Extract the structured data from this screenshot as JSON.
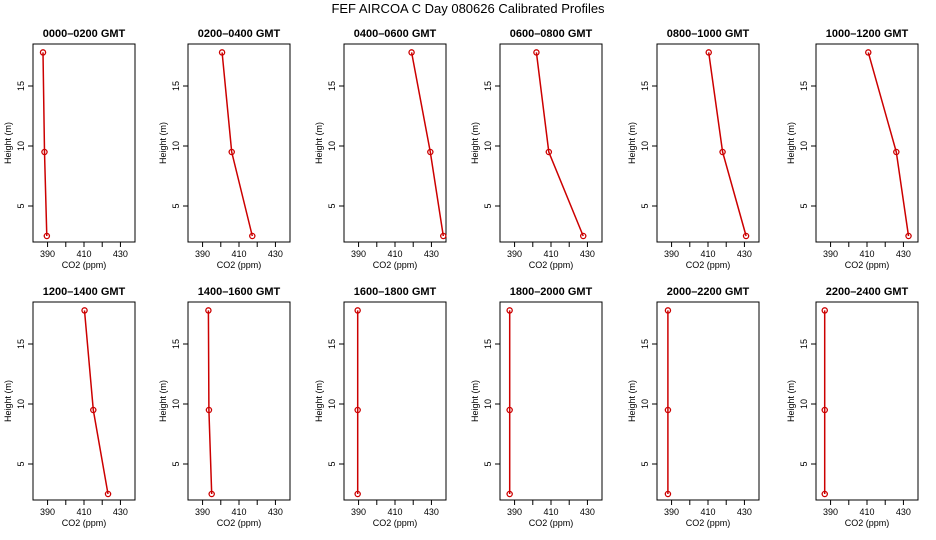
{
  "figure": {
    "title": "FEF  AIRCOA C  Day 080626  Calibrated Profiles",
    "colors": {
      "series": "#cc0000",
      "axis": "#000000",
      "background": "#ffffff"
    }
  },
  "chart_data": [
    {
      "type": "line",
      "title": "0000–0200 GMT",
      "xlabel": "CO2 (ppm)",
      "ylabel": "Height (m)",
      "xlim": [
        382,
        438
      ],
      "ylim": [
        2,
        18.5
      ],
      "xticks": [
        390,
        400,
        410,
        420,
        430
      ],
      "xtick_labels": [
        "390",
        "410",
        "430"
      ],
      "yticks": [
        5,
        10,
        15
      ],
      "ytick_labels": [
        "5",
        "10",
        "15"
      ],
      "series": [
        {
          "name": "profile",
          "x": [
            387.5,
            388.3,
            389.6
          ],
          "y": [
            17.8,
            9.5,
            2.5
          ]
        }
      ]
    },
    {
      "type": "line",
      "title": "0200–0400 GMT",
      "xlabel": "CO2 (ppm)",
      "ylabel": "Height (m)",
      "xlim": [
        382,
        438
      ],
      "ylim": [
        2,
        18.5
      ],
      "xticks": [
        390,
        400,
        410,
        420,
        430
      ],
      "xtick_labels": [
        "390",
        "410",
        "430"
      ],
      "yticks": [
        5,
        10,
        15
      ],
      "ytick_labels": [
        "5",
        "10",
        "15"
      ],
      "series": [
        {
          "name": "profile",
          "x": [
            400.7,
            406.0,
            417.3
          ],
          "y": [
            17.8,
            9.5,
            2.5
          ]
        }
      ]
    },
    {
      "type": "line",
      "title": "0400–0600 GMT",
      "xlabel": "CO2 (ppm)",
      "ylabel": "Height (m)",
      "xlim": [
        382,
        438
      ],
      "ylim": [
        2,
        18.5
      ],
      "xticks": [
        390,
        400,
        410,
        420,
        430
      ],
      "xtick_labels": [
        "390",
        "410",
        "430"
      ],
      "yticks": [
        5,
        10,
        15
      ],
      "ytick_labels": [
        "5",
        "10",
        "15"
      ],
      "series": [
        {
          "name": "profile",
          "x": [
            419.1,
            429.4,
            436.5
          ],
          "y": [
            17.8,
            9.5,
            2.5
          ]
        }
      ]
    },
    {
      "type": "line",
      "title": "0600–0800 GMT",
      "xlabel": "CO2 (ppm)",
      "ylabel": "Height (m)",
      "xlim": [
        382,
        438
      ],
      "ylim": [
        2,
        18.5
      ],
      "xticks": [
        390,
        400,
        410,
        420,
        430
      ],
      "xtick_labels": [
        "390",
        "410",
        "430"
      ],
      "yticks": [
        5,
        10,
        15
      ],
      "ytick_labels": [
        "5",
        "10",
        "15"
      ],
      "series": [
        {
          "name": "profile",
          "x": [
            402.0,
            408.8,
            427.7
          ],
          "y": [
            17.8,
            9.5,
            2.5
          ]
        }
      ]
    },
    {
      "type": "line",
      "title": "0800–1000 GMT",
      "xlabel": "CO2 (ppm)",
      "ylabel": "Height (m)",
      "xlim": [
        382,
        438
      ],
      "ylim": [
        2,
        18.5
      ],
      "xticks": [
        390,
        400,
        410,
        420,
        430
      ],
      "xtick_labels": [
        "390",
        "410",
        "430"
      ],
      "yticks": [
        5,
        10,
        15
      ],
      "ytick_labels": [
        "5",
        "10",
        "15"
      ],
      "series": [
        {
          "name": "profile",
          "x": [
            410.4,
            418.0,
            430.9
          ],
          "y": [
            17.8,
            9.5,
            2.5
          ]
        }
      ]
    },
    {
      "type": "line",
      "title": "1000–1200 GMT",
      "xlabel": "CO2 (ppm)",
      "ylabel": "Height (m)",
      "xlim": [
        382,
        438
      ],
      "ylim": [
        2,
        18.5
      ],
      "xticks": [
        390,
        400,
        410,
        420,
        430
      ],
      "xtick_labels": [
        "390",
        "410",
        "430"
      ],
      "yticks": [
        5,
        10,
        15
      ],
      "ytick_labels": [
        "5",
        "10",
        "15"
      ],
      "series": [
        {
          "name": "profile",
          "x": [
            410.7,
            426.1,
            432.8
          ],
          "y": [
            17.8,
            9.5,
            2.5
          ]
        }
      ]
    },
    {
      "type": "line",
      "title": "1200–1400 GMT",
      "xlabel": "CO2 (ppm)",
      "ylabel": "Height (m)",
      "xlim": [
        382,
        438
      ],
      "ylim": [
        2,
        18.5
      ],
      "xticks": [
        390,
        400,
        410,
        420,
        430
      ],
      "xtick_labels": [
        "390",
        "410",
        "430"
      ],
      "yticks": [
        5,
        10,
        15
      ],
      "ytick_labels": [
        "5",
        "10",
        "15"
      ],
      "series": [
        {
          "name": "profile",
          "x": [
            410.3,
            415.1,
            423.2
          ],
          "y": [
            17.8,
            9.5,
            2.5
          ]
        }
      ]
    },
    {
      "type": "line",
      "title": "1400–1600 GMT",
      "xlabel": "CO2 (ppm)",
      "ylabel": "Height (m)",
      "xlim": [
        382,
        438
      ],
      "ylim": [
        2,
        18.5
      ],
      "xticks": [
        390,
        400,
        410,
        420,
        430
      ],
      "xtick_labels": [
        "390",
        "410",
        "430"
      ],
      "yticks": [
        5,
        10,
        15
      ],
      "ytick_labels": [
        "5",
        "10",
        "15"
      ],
      "series": [
        {
          "name": "profile",
          "x": [
            393.2,
            393.5,
            395.0
          ],
          "y": [
            17.8,
            9.5,
            2.5
          ]
        }
      ]
    },
    {
      "type": "line",
      "title": "1600–1800 GMT",
      "xlabel": "CO2 (ppm)",
      "ylabel": "Height (m)",
      "xlim": [
        382,
        438
      ],
      "ylim": [
        2,
        18.5
      ],
      "xticks": [
        390,
        400,
        410,
        420,
        430
      ],
      "xtick_labels": [
        "390",
        "410",
        "430"
      ],
      "yticks": [
        5,
        10,
        15
      ],
      "ytick_labels": [
        "5",
        "10",
        "15"
      ],
      "series": [
        {
          "name": "profile",
          "x": [
            389.5,
            389.5,
            389.5
          ],
          "y": [
            17.8,
            9.5,
            2.5
          ]
        }
      ]
    },
    {
      "type": "line",
      "title": "1800–2000 GMT",
      "xlabel": "CO2 (ppm)",
      "ylabel": "Height (m)",
      "xlim": [
        382,
        438
      ],
      "ylim": [
        2,
        18.5
      ],
      "xticks": [
        390,
        400,
        410,
        420,
        430
      ],
      "xtick_labels": [
        "390",
        "410",
        "430"
      ],
      "yticks": [
        5,
        10,
        15
      ],
      "ytick_labels": [
        "5",
        "10",
        "15"
      ],
      "series": [
        {
          "name": "profile",
          "x": [
            387.3,
            387.3,
            387.3
          ],
          "y": [
            17.8,
            9.5,
            2.5
          ]
        }
      ]
    },
    {
      "type": "line",
      "title": "2000–2200 GMT",
      "xlabel": "CO2 (ppm)",
      "ylabel": "Height (m)",
      "xlim": [
        382,
        438
      ],
      "ylim": [
        2,
        18.5
      ],
      "xticks": [
        390,
        400,
        410,
        420,
        430
      ],
      "xtick_labels": [
        "390",
        "410",
        "430"
      ],
      "yticks": [
        5,
        10,
        15
      ],
      "ytick_labels": [
        "5",
        "10",
        "15"
      ],
      "series": [
        {
          "name": "profile",
          "x": [
            388.0,
            388.0,
            388.0
          ],
          "y": [
            17.8,
            9.5,
            2.5
          ]
        }
      ]
    },
    {
      "type": "line",
      "title": "2200–2400 GMT",
      "xlabel": "CO2 (ppm)",
      "ylabel": "Height (m)",
      "xlim": [
        382,
        438
      ],
      "ylim": [
        2,
        18.5
      ],
      "xticks": [
        390,
        400,
        410,
        420,
        430
      ],
      "xtick_labels": [
        "390",
        "410",
        "430"
      ],
      "yticks": [
        5,
        10,
        15
      ],
      "ytick_labels": [
        "5",
        "10",
        "15"
      ],
      "series": [
        {
          "name": "profile",
          "x": [
            386.8,
            386.8,
            386.8
          ],
          "y": [
            17.8,
            9.5,
            2.5
          ]
        }
      ]
    }
  ]
}
